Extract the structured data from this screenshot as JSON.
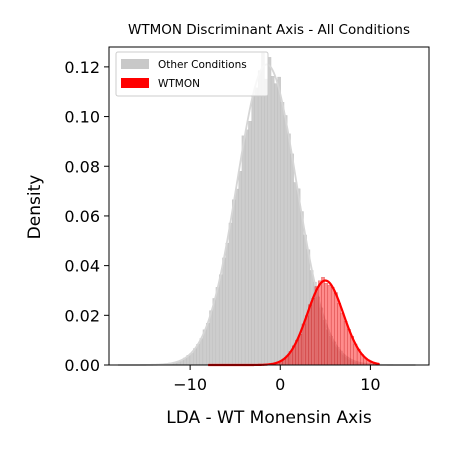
{
  "chart_data": {
    "type": "histogram-kde",
    "title": "WTMON Discriminant Axis - All Conditions",
    "xlabel": "LDA - WT Monensin Axis",
    "ylabel": "Density",
    "xlim": [
      -19,
      16.5
    ],
    "ylim": [
      0,
      0.128
    ],
    "xticks": [
      -10,
      0,
      10
    ],
    "xtick_labels": [
      "−10",
      "0",
      "10"
    ],
    "yticks": [
      0.0,
      0.02,
      0.04,
      0.06,
      0.08,
      0.1,
      0.12
    ],
    "ytick_labels": [
      "0.00",
      "0.02",
      "0.04",
      "0.06",
      "0.08",
      "0.10",
      "0.12"
    ],
    "legend_position": "upper left",
    "grid": false,
    "series": [
      {
        "name": "Other Conditions",
        "color": "#c8c8c8",
        "kde_color": "#d6d6d6",
        "distribution": "approx. normal",
        "mean": -1.5,
        "std": 3.3,
        "x_range": [
          -18,
          15
        ],
        "peak_density": 0.121
      },
      {
        "name": "WTMON",
        "color": "#ff0000",
        "kde_color": "#ff0000",
        "distribution": "approx. normal",
        "mean": 5.0,
        "std": 2.0,
        "x_range": [
          -8,
          11
        ],
        "peak_density": 0.034
      }
    ]
  }
}
